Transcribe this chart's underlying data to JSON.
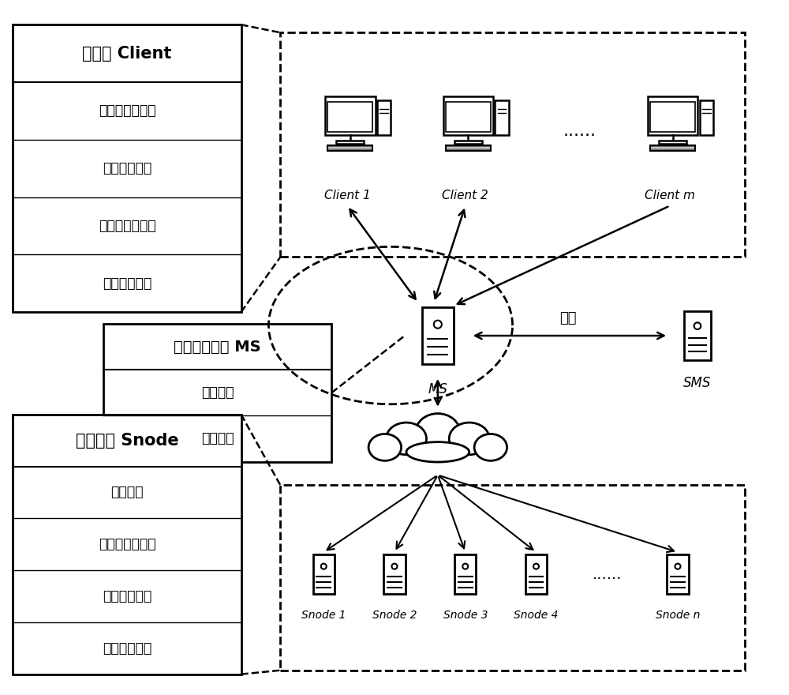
{
  "client_title": "客户端 Client",
  "client_modules": [
    "文件预处理模块",
    "局部重删模块",
    "元数据管理模块",
    "数据传输模块"
  ],
  "ms_title": "元数据服务器 MS",
  "ms_modules": [
    "过滤模块",
    "更新模块"
  ],
  "snode_title": "存储节点 Snode",
  "snode_modules": [
    "存储模块",
    "元数据管理模块",
    "自检报告模块",
    "延迟重删模块"
  ],
  "sync_label": "同步",
  "client_labels": [
    "Client 1",
    "Client 2",
    "Client m"
  ],
  "snode_labels": [
    "Snode 1",
    "Snode 2",
    "Snode 3",
    "Snode 4",
    "Snode n"
  ],
  "ms_label": "MS",
  "sms_label": "SMS",
  "dots": "......"
}
